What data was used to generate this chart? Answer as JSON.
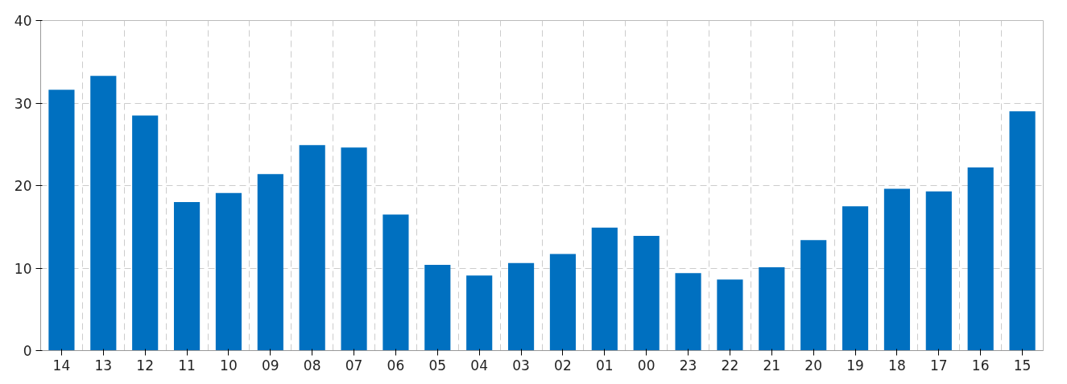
{
  "chart_data": {
    "type": "bar",
    "categories": [
      "14",
      "13",
      "12",
      "11",
      "10",
      "09",
      "08",
      "07",
      "06",
      "05",
      "04",
      "03",
      "02",
      "01",
      "00",
      "23",
      "22",
      "21",
      "20",
      "19",
      "18",
      "17",
      "16",
      "15"
    ],
    "values": [
      31.6,
      33.3,
      28.5,
      18.0,
      19.1,
      21.4,
      24.9,
      24.6,
      16.5,
      10.4,
      9.1,
      10.6,
      11.7,
      14.9,
      13.9,
      9.4,
      8.6,
      10.1,
      13.4,
      17.5,
      19.6,
      19.3,
      22.2,
      29.0
    ],
    "color": "#0070c0",
    "ylim": [
      0,
      40
    ],
    "yticks": [
      0,
      10,
      20,
      30,
      40
    ],
    "grid": true
  }
}
